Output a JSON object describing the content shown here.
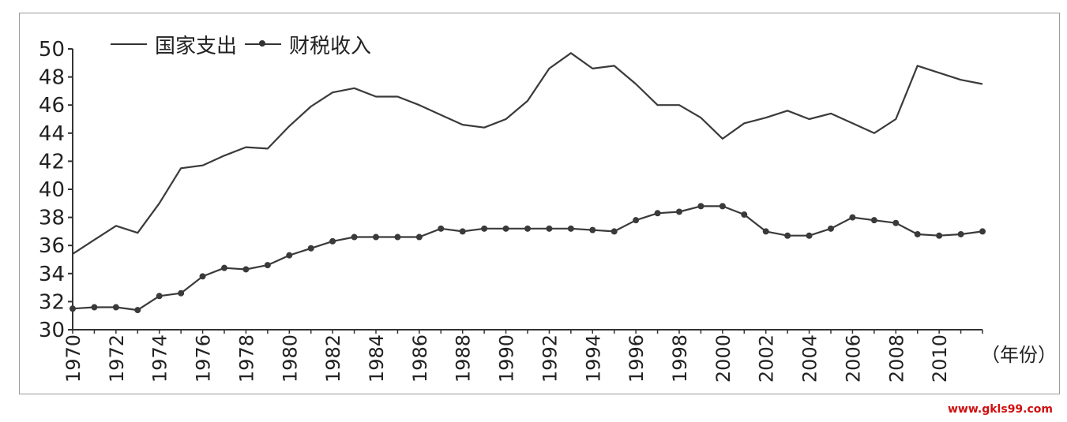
{
  "legend": {
    "series1": "国家支出",
    "series2": "财税收入"
  },
  "watermark": "www.gkls99.com",
  "chart_data": {
    "type": "line",
    "title": "",
    "xlabel": "（年份）",
    "ylabel": "",
    "xlim": [
      1970,
      2012
    ],
    "ylim": [
      30,
      50
    ],
    "yticks": [
      30,
      32,
      34,
      36,
      38,
      40,
      42,
      44,
      46,
      48,
      50
    ],
    "xticks": [
      1970,
      1972,
      1974,
      1976,
      1978,
      1980,
      1982,
      1984,
      1986,
      1988,
      1990,
      1992,
      1994,
      1996,
      1998,
      2000,
      2002,
      2004,
      2006,
      2008,
      2010
    ],
    "x": [
      1970,
      1971,
      1972,
      1973,
      1974,
      1975,
      1976,
      1977,
      1978,
      1979,
      1980,
      1981,
      1982,
      1983,
      1984,
      1985,
      1986,
      1987,
      1988,
      1989,
      1990,
      1991,
      1992,
      1993,
      1994,
      1995,
      1996,
      1997,
      1998,
      1999,
      2000,
      2001,
      2002,
      2003,
      2004,
      2005,
      2006,
      2007,
      2008,
      2009,
      2010,
      2011,
      2012
    ],
    "series": [
      {
        "name": "国家支出",
        "marker": "none",
        "values": [
          35.4,
          36.4,
          37.4,
          36.9,
          39.0,
          41.5,
          41.7,
          42.4,
          43.0,
          42.9,
          44.5,
          45.9,
          46.9,
          47.2,
          46.6,
          46.6,
          46.0,
          45.3,
          44.6,
          44.4,
          45.0,
          46.3,
          48.6,
          49.7,
          48.6,
          48.8,
          47.5,
          46.0,
          46.0,
          45.1,
          43.6,
          44.7,
          45.1,
          45.6,
          45.0,
          45.4,
          44.7,
          44.0,
          45.0,
          48.8,
          48.3,
          47.8,
          47.5
        ]
      },
      {
        "name": "财税收入",
        "marker": "dot",
        "values": [
          31.5,
          31.6,
          31.6,
          31.4,
          32.4,
          32.6,
          33.8,
          34.4,
          34.3,
          34.6,
          35.3,
          35.8,
          36.3,
          36.6,
          36.6,
          36.6,
          36.6,
          37.2,
          37.0,
          37.2,
          37.2,
          37.2,
          37.2,
          37.2,
          37.1,
          37.0,
          37.8,
          38.3,
          38.4,
          38.8,
          38.8,
          38.2,
          37.0,
          36.7,
          36.7,
          37.2,
          38.0,
          37.8,
          37.6,
          36.8,
          36.7,
          36.8,
          37.0
        ]
      }
    ]
  }
}
